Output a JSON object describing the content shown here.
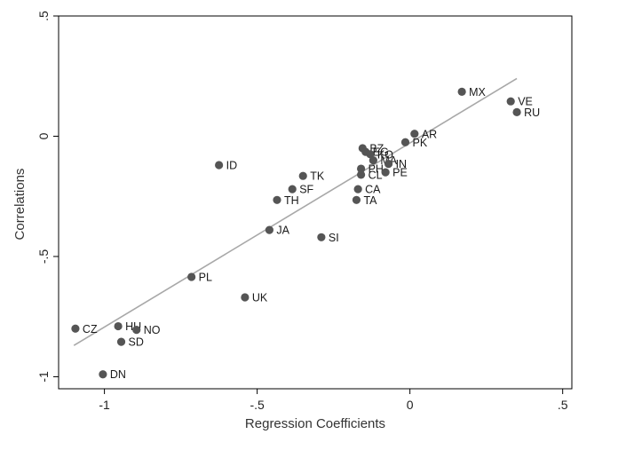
{
  "chart_data": {
    "type": "scatter",
    "xlabel": "Regression Coefficients",
    "ylabel": "Correlations",
    "xlim": [
      -1.15,
      0.53
    ],
    "ylim": [
      -1.05,
      0.5
    ],
    "x_ticks": [
      -1,
      -0.5,
      0,
      0.5
    ],
    "x_tick_labels": [
      "-1",
      "-.5",
      "0",
      ".5"
    ],
    "y_ticks": [
      -1,
      -0.5,
      0,
      0.5
    ],
    "y_tick_labels": [
      "-1",
      "-.5",
      "0",
      ".5"
    ],
    "grid": false,
    "legend": "none",
    "points": [
      {
        "label": "MX",
        "x": 0.17,
        "y": 0.185
      },
      {
        "label": "VE",
        "x": 0.33,
        "y": 0.145
      },
      {
        "label": "RU",
        "x": 0.35,
        "y": 0.1
      },
      {
        "label": "AR",
        "x": 0.015,
        "y": 0.01
      },
      {
        "label": "PK",
        "x": -0.015,
        "y": -0.025
      },
      {
        "label": "BZ",
        "x": -0.155,
        "y": -0.05
      },
      {
        "label": "EG",
        "x": -0.145,
        "y": -0.065
      },
      {
        "label": "KO",
        "x": -0.13,
        "y": -0.075
      },
      {
        "label": "MA",
        "x": -0.12,
        "y": -0.1
      },
      {
        "label": "IN",
        "x": -0.07,
        "y": -0.115
      },
      {
        "label": "PH",
        "x": -0.16,
        "y": -0.135
      },
      {
        "label": "PE",
        "x": -0.08,
        "y": -0.15
      },
      {
        "label": "CL",
        "x": -0.16,
        "y": -0.16
      },
      {
        "label": "ID",
        "x": -0.625,
        "y": -0.12
      },
      {
        "label": "TK",
        "x": -0.35,
        "y": -0.165
      },
      {
        "label": "SF",
        "x": -0.385,
        "y": -0.22
      },
      {
        "label": "CA",
        "x": -0.17,
        "y": -0.22
      },
      {
        "label": "TH",
        "x": -0.435,
        "y": -0.265
      },
      {
        "label": "TA",
        "x": -0.175,
        "y": -0.265
      },
      {
        "label": "JA",
        "x": -0.46,
        "y": -0.39
      },
      {
        "label": "SI",
        "x": -0.29,
        "y": -0.42
      },
      {
        "label": "PL",
        "x": -0.715,
        "y": -0.585
      },
      {
        "label": "UK",
        "x": -0.54,
        "y": -0.67
      },
      {
        "label": "CZ",
        "x": -1.095,
        "y": -0.8
      },
      {
        "label": "HU",
        "x": -0.955,
        "y": -0.79
      },
      {
        "label": "NO",
        "x": -0.895,
        "y": -0.805
      },
      {
        "label": "SD",
        "x": -0.945,
        "y": -0.855
      },
      {
        "label": "DN",
        "x": -1.005,
        "y": -0.99
      }
    ],
    "fit_line": {
      "x": [
        -1.1,
        0.35
      ],
      "y": [
        -0.87,
        0.24
      ]
    }
  }
}
